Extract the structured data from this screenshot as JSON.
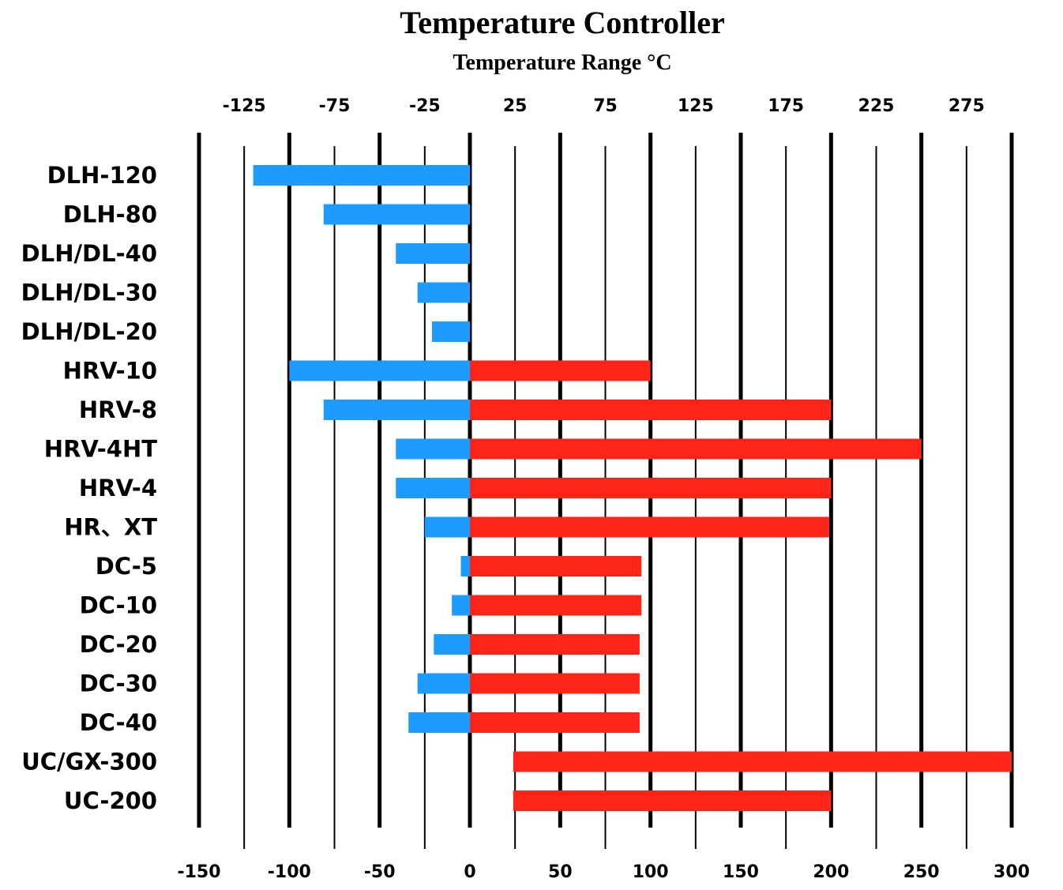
{
  "chart_data": {
    "type": "bar",
    "title": "Temperature Controller",
    "subtitle": "Temperature Range °C",
    "bottom_ticks": [
      -150,
      -100,
      -50,
      0,
      50,
      100,
      150,
      200,
      250,
      300
    ],
    "top_ticks": [
      -125,
      -75,
      -25,
      25,
      75,
      125,
      175,
      225,
      275
    ],
    "xlim": [
      -150,
      300
    ],
    "grid": true,
    "categories": [
      "DLH-120",
      "DLH-80",
      "DLH/DL-40",
      "DLH/DL-30",
      "DLH/DL-20",
      "HRV-10",
      "HRV-8",
      "HRV-4HT",
      "HRV-4",
      "HR、XT",
      "DC-5",
      "DC-10",
      "DC-20",
      "DC-30",
      "DC-40",
      "UC/GX-300",
      "UC-200"
    ],
    "series": [
      {
        "color": "#1e9bff",
        "ranges": [
          [
            -120,
            0
          ],
          [
            -81,
            0
          ],
          [
            -41,
            0
          ],
          [
            -29,
            0
          ],
          [
            -21,
            0
          ],
          [
            -100,
            0
          ],
          [
            -81,
            0
          ],
          [
            -41,
            0
          ],
          [
            -41,
            0
          ],
          [
            -25,
            0
          ],
          [
            -5,
            0
          ],
          [
            -10,
            0
          ],
          [
            -20,
            0
          ],
          [
            -29,
            0
          ],
          [
            -34,
            0
          ],
          null,
          null
        ]
      },
      {
        "color": "#ff2418",
        "ranges": [
          null,
          null,
          null,
          null,
          null,
          [
            0,
            100
          ],
          [
            0,
            200
          ],
          [
            0,
            250
          ],
          [
            0,
            200
          ],
          [
            0,
            199
          ],
          [
            0,
            95
          ],
          [
            0,
            95
          ],
          [
            0,
            94
          ],
          [
            0,
            94
          ],
          [
            0,
            94
          ],
          [
            24,
            300
          ],
          [
            24,
            200
          ]
        ]
      }
    ]
  }
}
